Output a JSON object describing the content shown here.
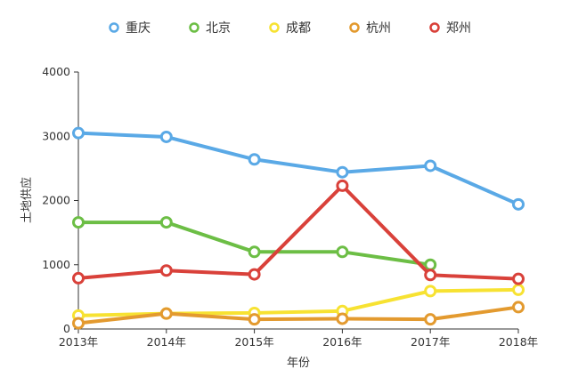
{
  "chart_data": {
    "type": "line",
    "title": "",
    "xlabel": "年份",
    "ylabel": "土地供应",
    "categories": [
      "2013年",
      "2014年",
      "2015年",
      "2016年",
      "2017年",
      "2018年"
    ],
    "ylim": [
      0,
      4000
    ],
    "yticks": [
      "0",
      "1000",
      "2000",
      "3000",
      "4000"
    ],
    "grid": false,
    "legend_position": "top",
    "series": [
      {
        "name": "重庆",
        "color": "#5aa9e6",
        "values": [
          3050,
          2990,
          2640,
          2440,
          2540,
          1940
        ]
      },
      {
        "name": "北京",
        "color": "#6cbe45",
        "values": [
          1660,
          1660,
          1200,
          1200,
          1000,
          null
        ]
      },
      {
        "name": "成都",
        "color": "#f7e232",
        "values": [
          210,
          240,
          250,
          280,
          590,
          610
        ]
      },
      {
        "name": "杭州",
        "color": "#e39a2f",
        "values": [
          90,
          240,
          150,
          160,
          150,
          340
        ]
      },
      {
        "name": "郑州",
        "color": "#d9413a",
        "values": [
          790,
          910,
          850,
          2230,
          840,
          780
        ]
      }
    ]
  }
}
